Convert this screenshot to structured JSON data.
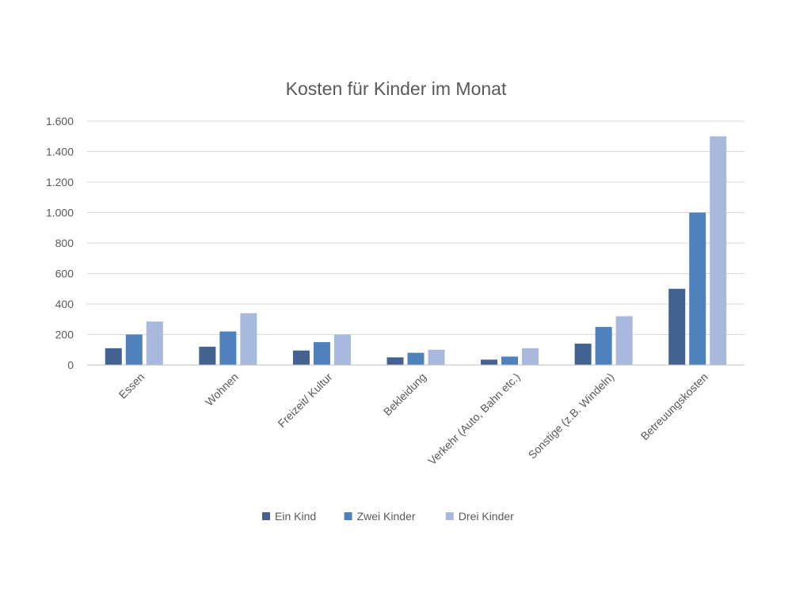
{
  "chart_data": {
    "type": "bar",
    "title": "Kosten für Kinder im Monat",
    "xlabel": "",
    "ylabel": "",
    "ylim": [
      0,
      1600
    ],
    "yticks": [
      0,
      200,
      400,
      600,
      800,
      1000,
      1200,
      1400,
      1600
    ],
    "ytick_labels": [
      "0",
      "200",
      "400",
      "600",
      "800",
      "1.000",
      "1.200",
      "1.400",
      "1.600"
    ],
    "grid": true,
    "legend_position": "bottom",
    "categories": [
      "Essen",
      "Wohnen",
      "Freizeit/ Kultur",
      "Bekleidung",
      "Verkehr (Auto, Bahn etc.)",
      "Sonstige (z.B. Windeln)",
      "Betreuungskosten"
    ],
    "series": [
      {
        "name": "Ein Kind",
        "color": "#44628f",
        "values": [
          110,
          120,
          95,
          50,
          35,
          140,
          500
        ]
      },
      {
        "name": "Zwei Kinder",
        "color": "#4f81bd",
        "values": [
          200,
          220,
          150,
          80,
          55,
          250,
          1000
        ]
      },
      {
        "name": "Drei Kinder",
        "color": "#a9b9dd",
        "values": [
          285,
          340,
          200,
          100,
          110,
          320,
          1500
        ]
      }
    ]
  }
}
